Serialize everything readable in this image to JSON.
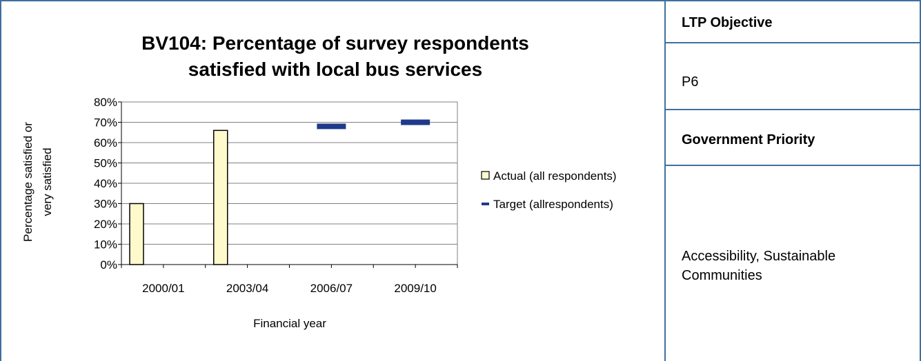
{
  "chart_data": {
    "type": "bar",
    "title": "BV104: Percentage of survey respondents satisfied with local bus services",
    "title_lines": [
      "BV104: Percentage of survey respondents",
      "satisfied with local bus services"
    ],
    "categories": [
      "2000/01",
      "2003/04",
      "2006/07",
      "2009/10"
    ],
    "series": [
      {
        "name": "Actual (all respondents)",
        "kind": "bar",
        "values": [
          30,
          66,
          null,
          null
        ],
        "color": "#fffacc",
        "stroke": "#000000"
      },
      {
        "name": "Target (allrespondents)",
        "kind": "marker",
        "values": [
          null,
          null,
          68,
          70
        ],
        "color": "#1f3a8a"
      }
    ],
    "xlabel": "Financial year",
    "ylabel": "Percentage satisfied or very satisfied",
    "ylabel_lines": [
      "Percentage satisfied or",
      "very satisfied"
    ],
    "ylim": [
      0,
      80
    ],
    "yticks": [
      0,
      10,
      20,
      30,
      40,
      50,
      60,
      70,
      80
    ],
    "ytick_labels": [
      "0%",
      "10%",
      "20%",
      "30%",
      "40%",
      "50%",
      "60%",
      "70%",
      "80%"
    ],
    "grid": true,
    "legend_position": "right"
  },
  "side_panel": {
    "ltp_heading": "LTP Objective",
    "ltp_value": "P6",
    "gov_heading": "Government Priority",
    "gov_value_lines": [
      "Accessibility, Sustainable",
      "Communities"
    ]
  },
  "colors": {
    "border": "#3f6f9f",
    "gridline": "#808080"
  }
}
